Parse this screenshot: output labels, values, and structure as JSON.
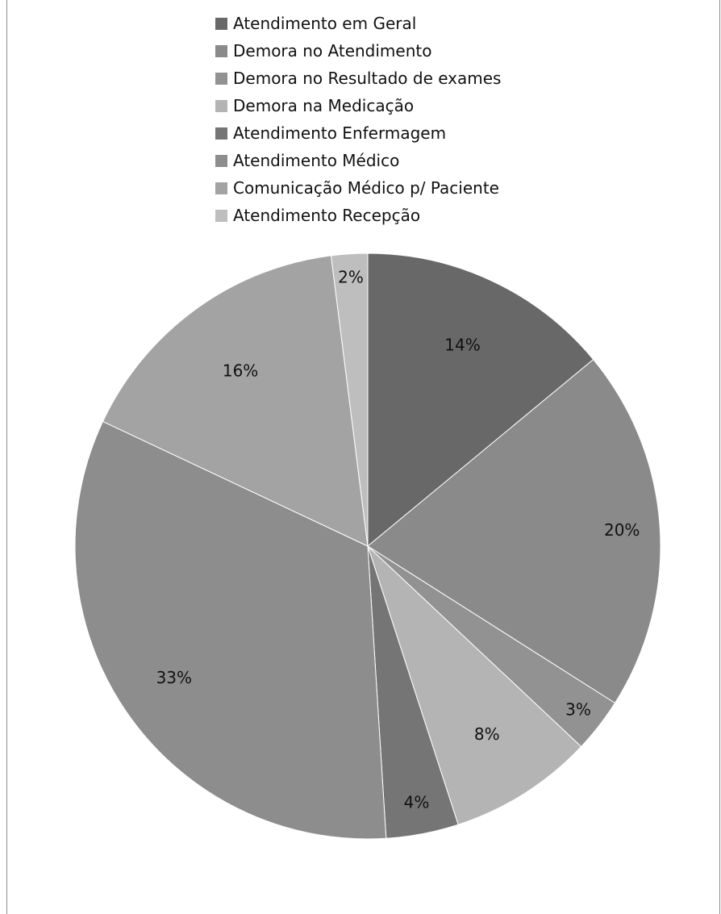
{
  "chart_data": {
    "type": "pie",
    "title": "",
    "legend_position": "top",
    "slices": [
      {
        "label": "Atendimento em Geral",
        "value": 14,
        "value_label": "14%",
        "color": "#686868"
      },
      {
        "label": "Demora no Atendimento",
        "value": 20,
        "value_label": "20%",
        "color": "#8a8a8a"
      },
      {
        "label": "Demora no Resultado de exames",
        "value": 3,
        "value_label": "3%",
        "color": "#929292"
      },
      {
        "label": "Demora na Medicação",
        "value": 8,
        "value_label": "8%",
        "color": "#b4b4b4"
      },
      {
        "label": "Atendimento Enfermagem",
        "value": 4,
        "value_label": "4%",
        "color": "#757575"
      },
      {
        "label": "Atendimento Médico",
        "value": 33,
        "value_label": "33%",
        "color": "#8d8d8d"
      },
      {
        "label": "Comunicação Médico p/ Paciente",
        "value": 16,
        "value_label": "16%",
        "color": "#a3a3a3"
      },
      {
        "label": "Atendimento Recepção",
        "value": 2,
        "value_label": "2%",
        "color": "#bebebe"
      }
    ]
  }
}
